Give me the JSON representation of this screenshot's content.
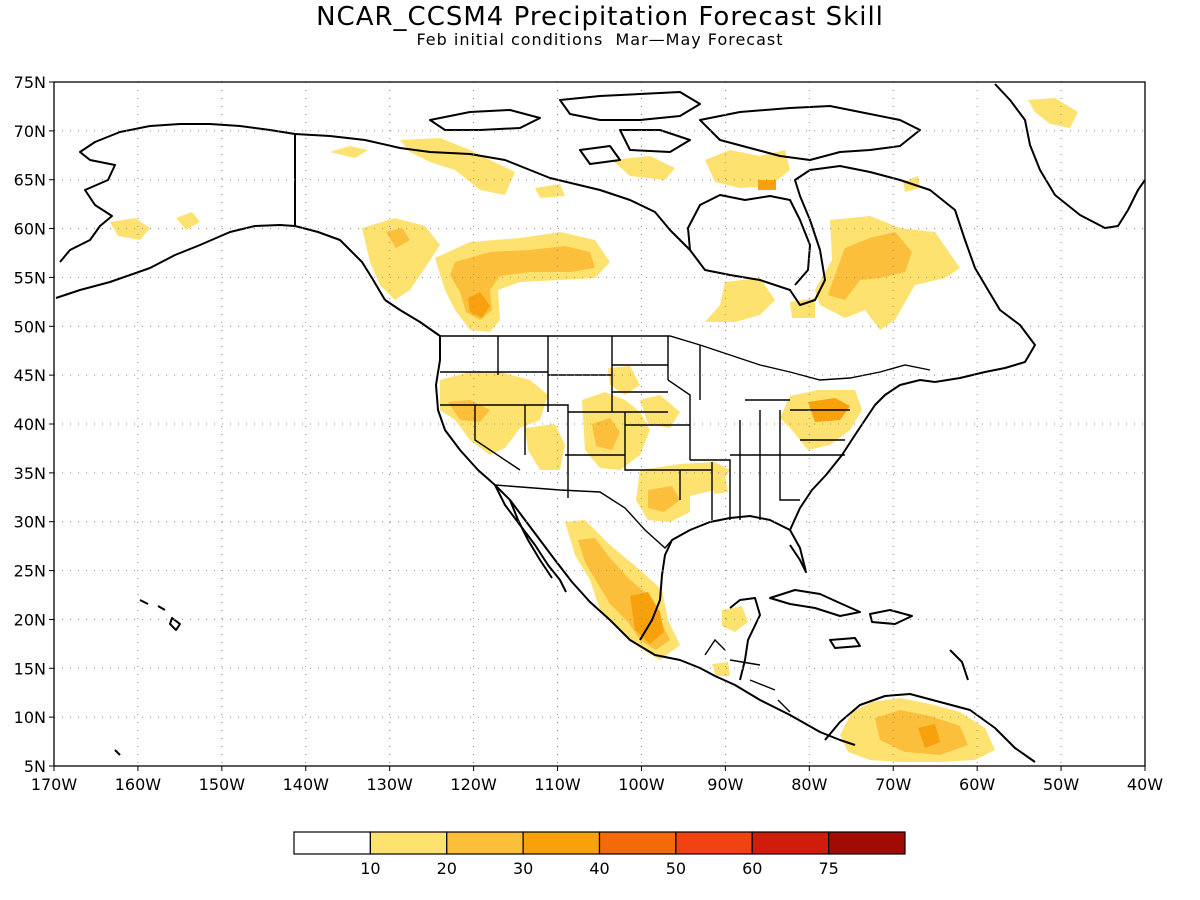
{
  "title": "NCAR_CCSM4 Precipitation Forecast Skill",
  "subtitle": "Feb initial conditions  Mar—May Forecast",
  "map": {
    "lon_range": [
      -170,
      -40
    ],
    "lat_range": [
      5,
      75
    ],
    "lat_labels": [
      "5N",
      "10N",
      "15N",
      "20N",
      "25N",
      "30N",
      "35N",
      "40N",
      "45N",
      "50N",
      "55N",
      "60N",
      "65N",
      "70N",
      "75N"
    ],
    "lon_labels": [
      "170W",
      "160W",
      "150W",
      "140W",
      "130W",
      "120W",
      "110W",
      "100W",
      "90W",
      "80W",
      "70W",
      "60W",
      "50W",
      "40W"
    ],
    "gridlines": true,
    "skill_areas": [
      {
        "lon": -120,
        "lat": 54,
        "level": 1
      },
      {
        "lon": -110,
        "lat": 56,
        "level": 1
      },
      {
        "lon": -128,
        "lat": 58,
        "level": 1
      },
      {
        "lon": -73,
        "lat": 56,
        "level": 2
      },
      {
        "lon": -79,
        "lat": 42,
        "level": 2
      },
      {
        "lon": -99,
        "lat": 20,
        "level": 2
      },
      {
        "lon": -66,
        "lat": 8,
        "level": 2
      }
    ]
  },
  "colorbar": {
    "labels": [
      "10",
      "20",
      "30",
      "40",
      "50",
      "60",
      "75"
    ],
    "colors": [
      "#ffffff",
      "#fde270",
      "#fbbf3b",
      "#f9a10d",
      "#f36a0a",
      "#ef4312",
      "#d01d0b",
      "#a00c05"
    ]
  }
}
